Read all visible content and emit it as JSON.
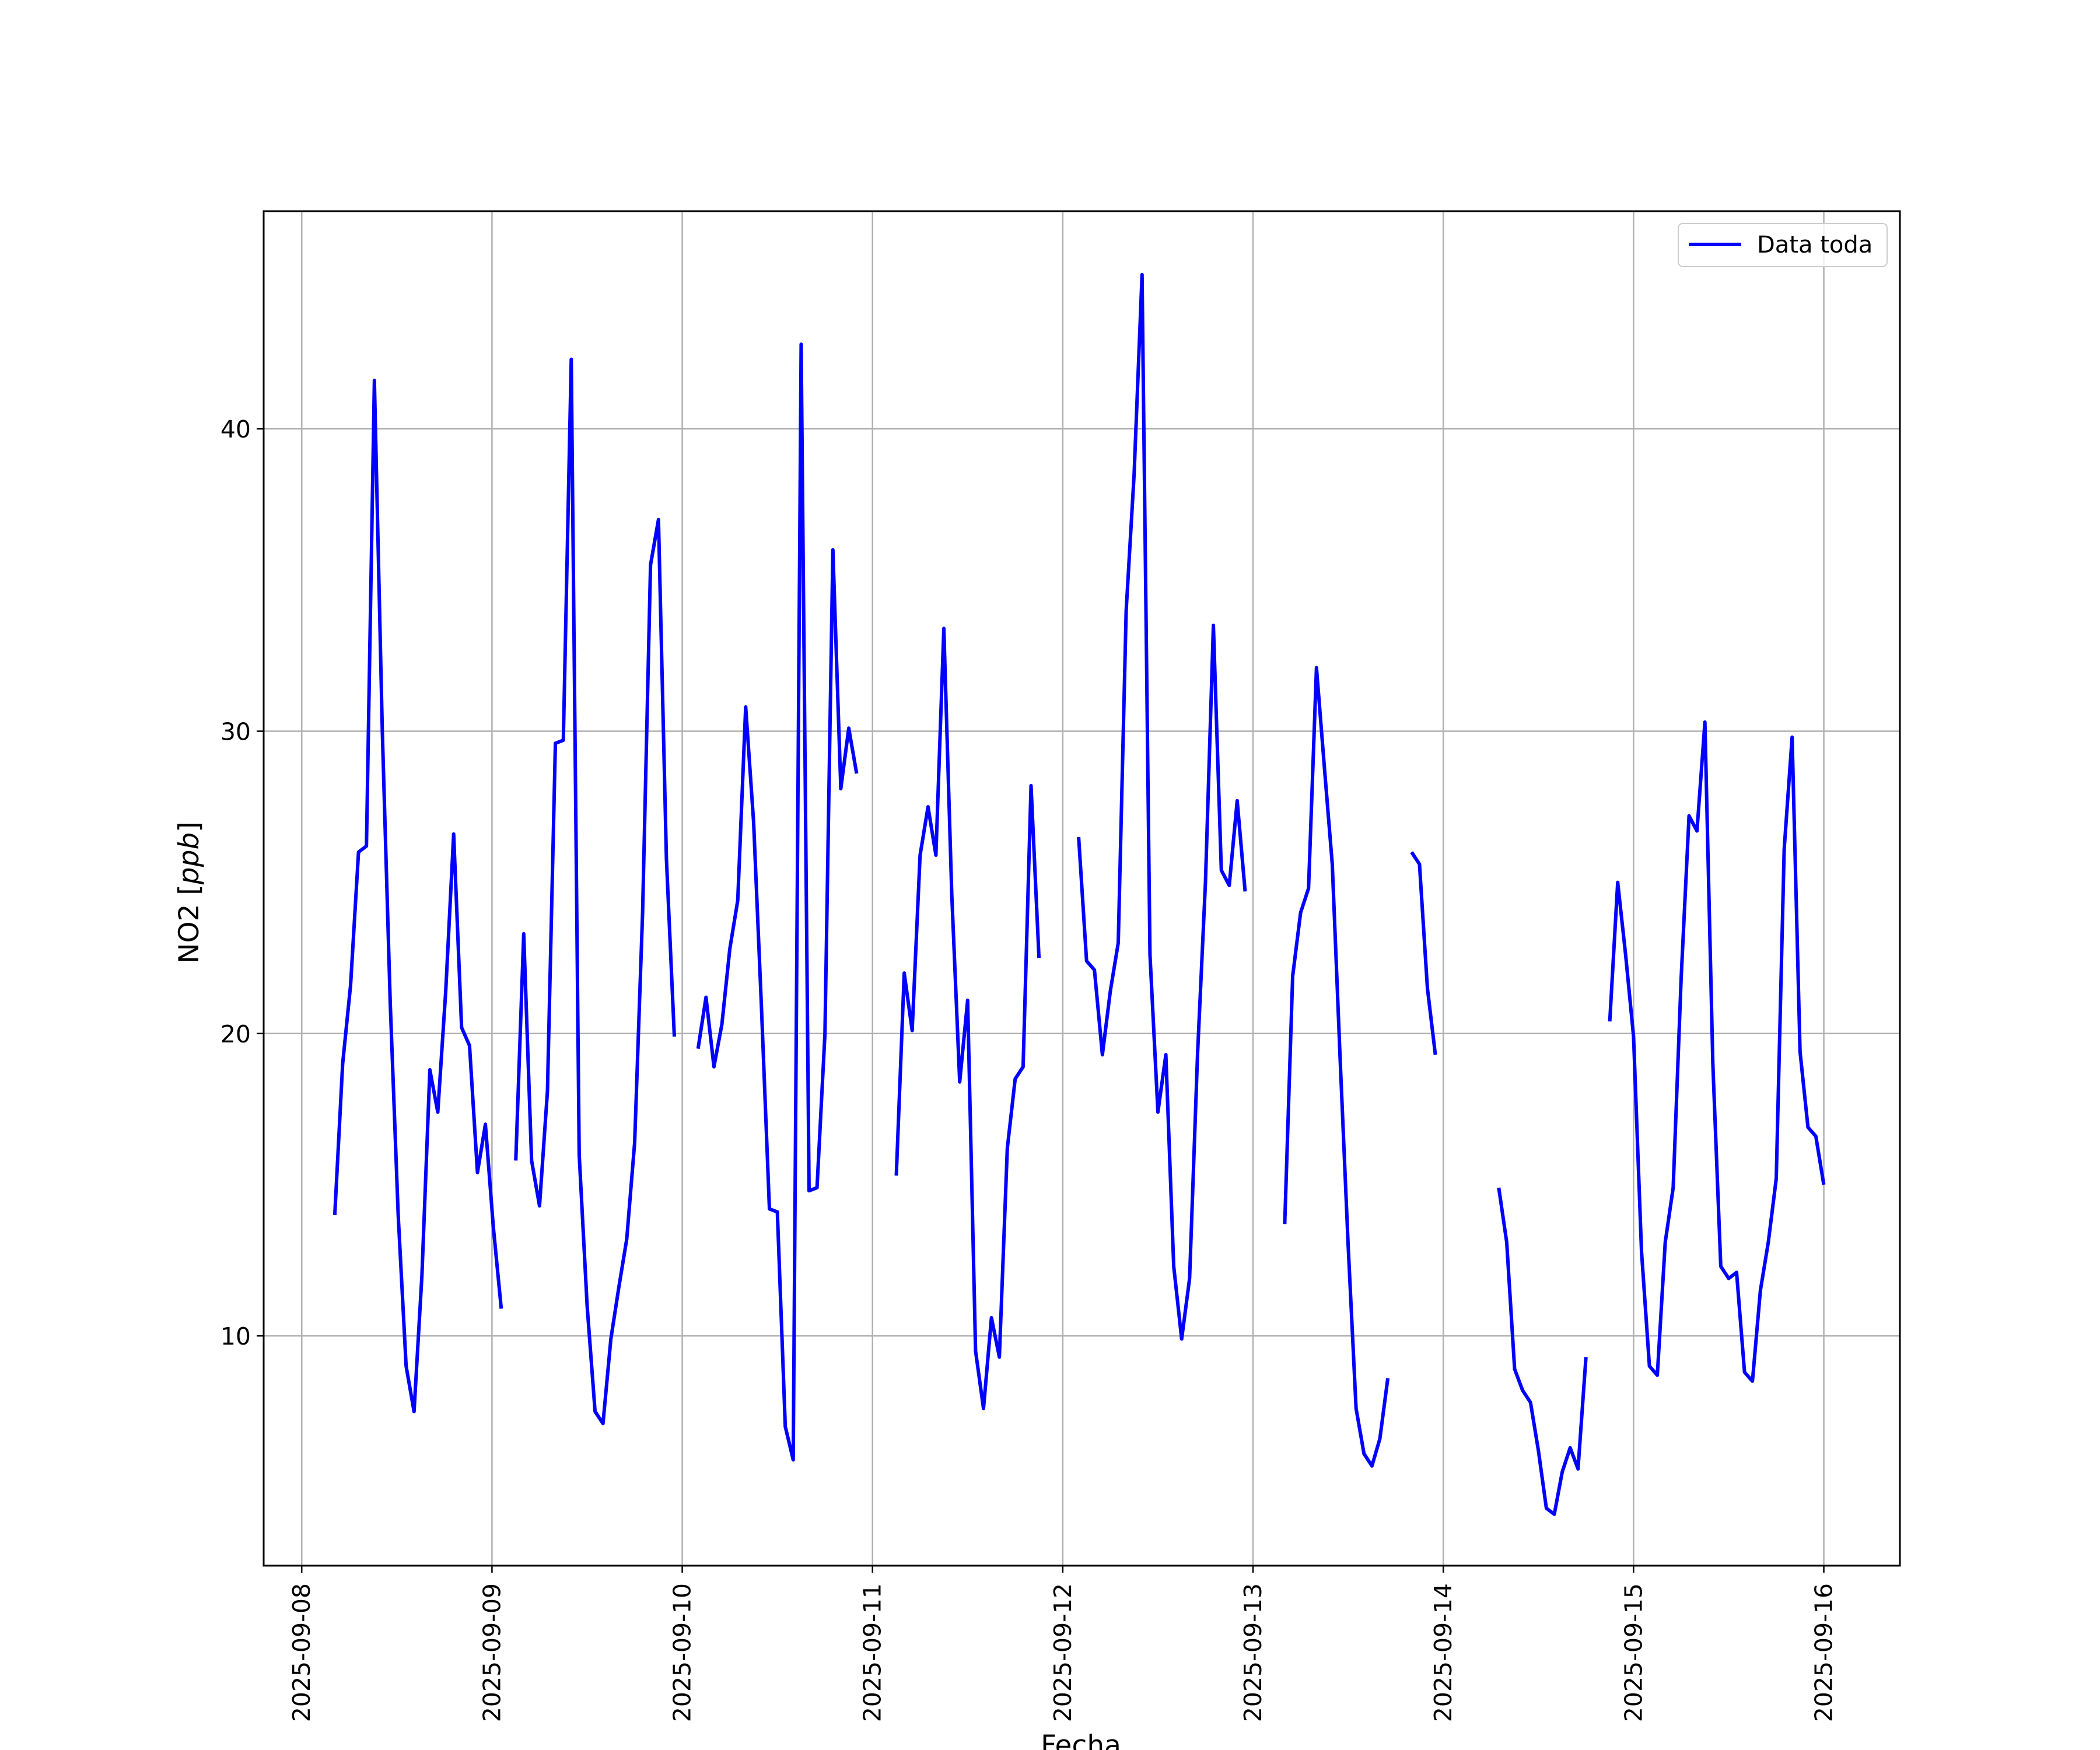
{
  "chart_data": {
    "type": "line",
    "title": "",
    "xlabel": "Fecha",
    "ylabel_prefix": "NO2 [",
    "ylabel_unit": "ppb",
    "ylabel_suffix": "]",
    "xlim": [
      "2025-09-07 19:12",
      "2025-09-16 09:36"
    ],
    "ylim": [
      2.4,
      47.2
    ],
    "x_ticks": [
      "2025-09-08",
      "2025-09-09",
      "2025-09-10",
      "2025-09-11",
      "2025-09-12",
      "2025-09-13",
      "2025-09-14",
      "2025-09-15",
      "2025-09-16"
    ],
    "y_ticks": [
      10,
      20,
      30,
      40
    ],
    "y_tick_labels": [
      "10",
      "20",
      "30",
      "40"
    ],
    "grid": true,
    "legend": {
      "position": "top-right",
      "entries": [
        "Data toda"
      ]
    },
    "series": [
      {
        "name": "Data toda",
        "color": "#0000ff",
        "segments": [
          [
            [
              "2025-09-08 04:10",
              14.0
            ],
            [
              "2025-09-08 05:10",
              19.0
            ],
            [
              "2025-09-08 06:10",
              21.6
            ],
            [
              "2025-09-08 07:10",
              26.0
            ],
            [
              "2025-09-08 08:10",
              26.2
            ],
            [
              "2025-09-08 09:10",
              41.6
            ],
            [
              "2025-09-08 10:10",
              30.0
            ],
            [
              "2025-09-08 11:10",
              21.0
            ],
            [
              "2025-09-08 12:10",
              14.0
            ],
            [
              "2025-09-08 13:10",
              9.0
            ],
            [
              "2025-09-08 14:10",
              7.5
            ],
            [
              "2025-09-08 15:10",
              12.0
            ],
            [
              "2025-09-08 16:10",
              18.8
            ],
            [
              "2025-09-08 17:10",
              17.4
            ],
            [
              "2025-09-08 18:10",
              21.4
            ],
            [
              "2025-09-08 19:10",
              26.6
            ],
            [
              "2025-09-08 20:10",
              20.2
            ],
            [
              "2025-09-08 21:10",
              19.6
            ],
            [
              "2025-09-08 22:10",
              15.4
            ],
            [
              "2025-09-08 23:10",
              17.0
            ],
            [
              "2025-09-09 00:10",
              13.6
            ],
            [
              "2025-09-09 01:10",
              10.9
            ]
          ],
          [
            [
              "2025-09-09 03:00",
              15.8
            ],
            [
              "2025-09-09 04:00",
              23.3
            ],
            [
              "2025-09-09 05:00",
              15.8
            ],
            [
              "2025-09-09 06:00",
              14.3
            ],
            [
              "2025-09-09 07:00",
              18.1
            ],
            [
              "2025-09-09 08:00",
              29.6
            ],
            [
              "2025-09-09 09:00",
              29.7
            ],
            [
              "2025-09-09 10:00",
              42.3
            ],
            [
              "2025-09-09 11:00",
              16.0
            ],
            [
              "2025-09-09 12:00",
              11.0
            ],
            [
              "2025-09-09 13:00",
              7.5
            ],
            [
              "2025-09-09 14:00",
              7.1
            ],
            [
              "2025-09-09 15:00",
              9.9
            ],
            [
              "2025-09-09 16:00",
              11.6
            ],
            [
              "2025-09-09 17:00",
              13.2
            ],
            [
              "2025-09-09 18:00",
              16.4
            ],
            [
              "2025-09-09 19:00",
              24.0
            ],
            [
              "2025-09-09 20:00",
              35.5
            ],
            [
              "2025-09-09 21:00",
              37.0
            ],
            [
              "2025-09-09 22:00",
              25.8
            ],
            [
              "2025-09-09 23:00",
              19.9
            ]
          ],
          [
            [
              "2025-09-10 02:00",
              19.5
            ],
            [
              "2025-09-10 03:00",
              21.2
            ],
            [
              "2025-09-10 04:00",
              18.9
            ],
            [
              "2025-09-10 05:00",
              20.3
            ],
            [
              "2025-09-10 06:00",
              22.8
            ],
            [
              "2025-09-10 07:00",
              24.4
            ],
            [
              "2025-09-10 08:00",
              30.8
            ],
            [
              "2025-09-10 09:00",
              27.0
            ],
            [
              "2025-09-10 10:00",
              20.8
            ],
            [
              "2025-09-10 11:00",
              14.2
            ],
            [
              "2025-09-10 12:00",
              14.1
            ],
            [
              "2025-09-10 13:00",
              7.0
            ],
            [
              "2025-09-10 14:00",
              5.9
            ],
            [
              "2025-09-10 15:00",
              42.8
            ],
            [
              "2025-09-10 16:00",
              14.8
            ],
            [
              "2025-09-10 17:00",
              14.9
            ],
            [
              "2025-09-10 18:00",
              20.0
            ],
            [
              "2025-09-10 19:00",
              36.0
            ],
            [
              "2025-09-10 20:00",
              28.1
            ],
            [
              "2025-09-10 21:00",
              30.1
            ],
            [
              "2025-09-10 22:00",
              28.6
            ]
          ],
          [
            [
              "2025-09-11 03:00",
              15.3
            ],
            [
              "2025-09-11 04:00",
              22.0
            ],
            [
              "2025-09-11 05:00",
              20.1
            ],
            [
              "2025-09-11 06:00",
              25.9
            ],
            [
              "2025-09-11 07:00",
              27.5
            ],
            [
              "2025-09-11 08:00",
              25.9
            ],
            [
              "2025-09-11 09:00",
              33.4
            ],
            [
              "2025-09-11 10:00",
              24.6
            ],
            [
              "2025-09-11 11:00",
              18.4
            ],
            [
              "2025-09-11 12:00",
              21.1
            ],
            [
              "2025-09-11 13:00",
              9.5
            ],
            [
              "2025-09-11 14:00",
              7.6
            ],
            [
              "2025-09-11 15:00",
              10.6
            ],
            [
              "2025-09-11 16:00",
              9.3
            ],
            [
              "2025-09-11 17:00",
              16.2
            ],
            [
              "2025-09-11 18:00",
              18.5
            ],
            [
              "2025-09-11 19:00",
              18.9
            ],
            [
              "2025-09-11 20:00",
              28.2
            ],
            [
              "2025-09-11 21:00",
              22.5
            ]
          ],
          [
            [
              "2025-09-12 02:00",
              26.5
            ],
            [
              "2025-09-12 03:00",
              22.4
            ],
            [
              "2025-09-12 04:00",
              22.1
            ],
            [
              "2025-09-12 05:00",
              19.3
            ],
            [
              "2025-09-12 06:00",
              21.4
            ],
            [
              "2025-09-12 07:00",
              23.0
            ],
            [
              "2025-09-12 08:00",
              34.0
            ],
            [
              "2025-09-12 09:00",
              38.5
            ],
            [
              "2025-09-12 10:00",
              45.1
            ],
            [
              "2025-09-12 11:00",
              22.6
            ],
            [
              "2025-09-12 12:00",
              17.4
            ],
            [
              "2025-09-12 13:00",
              19.3
            ],
            [
              "2025-09-12 14:00",
              12.3
            ],
            [
              "2025-09-12 15:00",
              9.9
            ],
            [
              "2025-09-12 16:00",
              11.9
            ],
            [
              "2025-09-12 17:00",
              19.3
            ],
            [
              "2025-09-12 18:00",
              25.0
            ],
            [
              "2025-09-12 19:00",
              33.5
            ],
            [
              "2025-09-12 20:00",
              25.4
            ],
            [
              "2025-09-12 21:00",
              24.9
            ],
            [
              "2025-09-12 22:00",
              27.7
            ],
            [
              "2025-09-12 23:00",
              24.7
            ]
          ],
          [
            [
              "2025-09-13 04:00",
              13.7
            ],
            [
              "2025-09-13 05:00",
              21.9
            ],
            [
              "2025-09-13 06:00",
              24.0
            ],
            [
              "2025-09-13 07:00",
              24.8
            ],
            [
              "2025-09-13 08:00",
              32.1
            ],
            [
              "2025-09-13 09:00",
              28.8
            ],
            [
              "2025-09-13 10:00",
              25.6
            ],
            [
              "2025-09-13 11:00",
              19.1
            ],
            [
              "2025-09-13 12:00",
              13.0
            ],
            [
              "2025-09-13 13:00",
              7.6
            ],
            [
              "2025-09-13 14:00",
              6.1
            ],
            [
              "2025-09-13 15:00",
              5.7
            ],
            [
              "2025-09-13 16:00",
              6.6
            ],
            [
              "2025-09-13 17:00",
              8.6
            ]
          ],
          [
            [
              "2025-09-13 20:00",
              26.0
            ],
            [
              "2025-09-13 21:00",
              25.6
            ],
            [
              "2025-09-13 22:00",
              21.5
            ],
            [
              "2025-09-13 23:00",
              19.3
            ]
          ],
          [
            [
              "2025-09-14 07:00",
              14.9
            ],
            [
              "2025-09-14 08:00",
              13.1
            ],
            [
              "2025-09-14 09:00",
              8.9
            ],
            [
              "2025-09-14 10:00",
              8.2
            ],
            [
              "2025-09-14 11:00",
              7.8
            ],
            [
              "2025-09-14 12:00",
              6.2
            ],
            [
              "2025-09-14 13:00",
              4.3
            ],
            [
              "2025-09-14 14:00",
              4.1
            ],
            [
              "2025-09-14 15:00",
              5.5
            ],
            [
              "2025-09-14 16:00",
              6.3
            ],
            [
              "2025-09-14 17:00",
              5.6
            ],
            [
              "2025-09-14 18:00",
              9.3
            ]
          ],
          [
            [
              "2025-09-14 21:00",
              20.4
            ],
            [
              "2025-09-14 22:00",
              25.0
            ],
            [
              "2025-09-14 23:00",
              22.6
            ],
            [
              "2025-09-15 00:00",
              19.9
            ],
            [
              "2025-09-15 01:00",
              12.8
            ],
            [
              "2025-09-15 02:00",
              9.0
            ],
            [
              "2025-09-15 03:00",
              8.7
            ],
            [
              "2025-09-15 04:00",
              13.1
            ],
            [
              "2025-09-15 05:00",
              14.9
            ],
            [
              "2025-09-15 06:00",
              21.8
            ],
            [
              "2025-09-15 07:00",
              27.2
            ],
            [
              "2025-09-15 08:00",
              26.7
            ],
            [
              "2025-09-15 09:00",
              30.3
            ],
            [
              "2025-09-15 10:00",
              19.0
            ],
            [
              "2025-09-15 11:00",
              12.3
            ],
            [
              "2025-09-15 12:00",
              11.9
            ],
            [
              "2025-09-15 13:00",
              12.1
            ],
            [
              "2025-09-15 14:00",
              8.8
            ],
            [
              "2025-09-15 15:00",
              8.5
            ],
            [
              "2025-09-15 16:00",
              11.5
            ],
            [
              "2025-09-15 17:00",
              13.1
            ],
            [
              "2025-09-15 18:00",
              15.2
            ],
            [
              "2025-09-15 19:00",
              26.1
            ],
            [
              "2025-09-15 20:00",
              29.8
            ],
            [
              "2025-09-15 21:00",
              19.4
            ],
            [
              "2025-09-15 22:00",
              16.9
            ],
            [
              "2025-09-15 23:00",
              16.6
            ],
            [
              "2025-09-16 00:00",
              15.0
            ]
          ]
        ]
      }
    ]
  }
}
